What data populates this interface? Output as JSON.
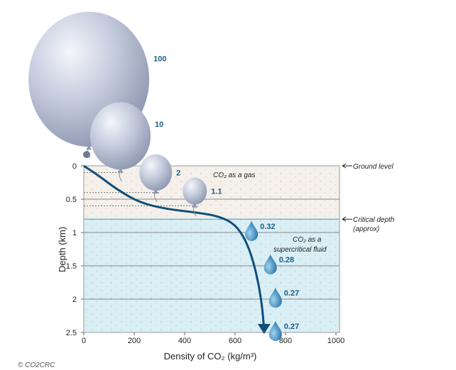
{
  "chart_data": {
    "type": "line",
    "title": "",
    "xlabel": "Density of CO₂ (kg/m³)",
    "ylabel": "Depth (km)",
    "xlim": [
      0,
      1000
    ],
    "ylim": [
      0,
      2.5
    ],
    "x_ticks": [
      "0",
      "200",
      "400",
      "600",
      "800",
      "1000"
    ],
    "y_ticks": [
      "0",
      "0.5",
      "1",
      "1.5",
      "2",
      "2.5"
    ],
    "curve": {
      "name": "CO2 density vs depth",
      "points": [
        [
          0,
          0
        ],
        [
          60,
          0.15
        ],
        [
          130,
          0.35
        ],
        [
          220,
          0.55
        ],
        [
          330,
          0.65
        ],
        [
          450,
          0.7
        ],
        [
          540,
          0.76
        ],
        [
          600,
          0.88
        ],
        [
          640,
          1.1
        ],
        [
          670,
          1.4
        ],
        [
          695,
          1.8
        ],
        [
          710,
          2.2
        ],
        [
          715,
          2.5
        ]
      ]
    },
    "markers": [
      {
        "type": "balloon",
        "label": "100",
        "density": 20,
        "depth": -1.3,
        "size": 1.0
      },
      {
        "type": "balloon",
        "label": "10",
        "density": 145,
        "depth": -0.45,
        "size": 0.5
      },
      {
        "type": "balloon",
        "label": "2",
        "density": 285,
        "depth": 0.1,
        "size": 0.27
      },
      {
        "type": "balloon",
        "label": "1.1",
        "density": 440,
        "depth": 0.38,
        "size": 0.2
      },
      {
        "type": "drop",
        "label": "0.32",
        "density": 665,
        "depth": 1.0
      },
      {
        "type": "drop",
        "label": "0.28",
        "density": 740,
        "depth": 1.5
      },
      {
        "type": "drop",
        "label": "0.27",
        "density": 760,
        "depth": 2.0
      },
      {
        "type": "drop",
        "label": "0.27",
        "density": 760,
        "depth": 2.5
      }
    ],
    "regions": [
      {
        "name": "gas",
        "label": "CO₂ as a gas",
        "from": 0,
        "to": 0.8,
        "color": "#f5f1ea"
      },
      {
        "name": "supercritical",
        "label_1": "CO₂ as a",
        "label_2": "supercritical fluid",
        "from": 0.8,
        "to": 2.5,
        "color": "#d9eef5"
      }
    ],
    "annotations": {
      "ground": "Ground level",
      "critical_1": "Critical depth",
      "critical_2": "(approx)",
      "critical_depth": 0.8
    },
    "string_depths": [
      0.1,
      0.4,
      0.6
    ]
  },
  "credit": "© CO2CRC",
  "colors": {
    "curve": "#0f4f7a",
    "label": "#1c5f8a",
    "balloon": "#b9c2d6"
  }
}
